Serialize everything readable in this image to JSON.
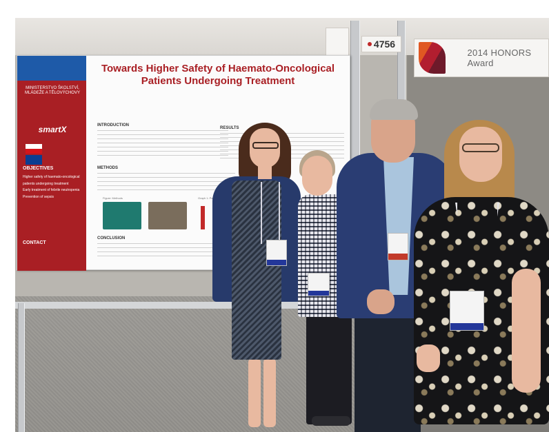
{
  "scene": {
    "description_colors": {
      "poster_red": "#a91f24",
      "poster_blue": "#1e5aa8",
      "jacket_navy": "#273a6b"
    }
  },
  "signs": {
    "booth_number": "4756",
    "honors": "2014 HONORS Award"
  },
  "poster": {
    "ministry_logo": "MINISTERSTVO ŠKOLSTVÍ, MLÁDEŽE A TĚLOVÝCHOVY",
    "program_logo": "smartX",
    "title": "Towards Higher Safety of Haemato-Oncological Patients Undergoing Treatment",
    "sections": {
      "introduction": "INTRODUCTION",
      "results": "RESULTS",
      "methods": "METHODS",
      "conclusion": "CONCLUSION",
      "objectives": "OBJECTIVES",
      "contact": "CONTACT"
    },
    "objectives": [
      "Higher safety of haemato-oncological patients undergoing treatment",
      "Early treatment of febrile neutropenia",
      "Prevention of sepsis"
    ],
    "figure_label": "Figure: Methods",
    "graph_label": "Graph 1: Patient cohort"
  }
}
